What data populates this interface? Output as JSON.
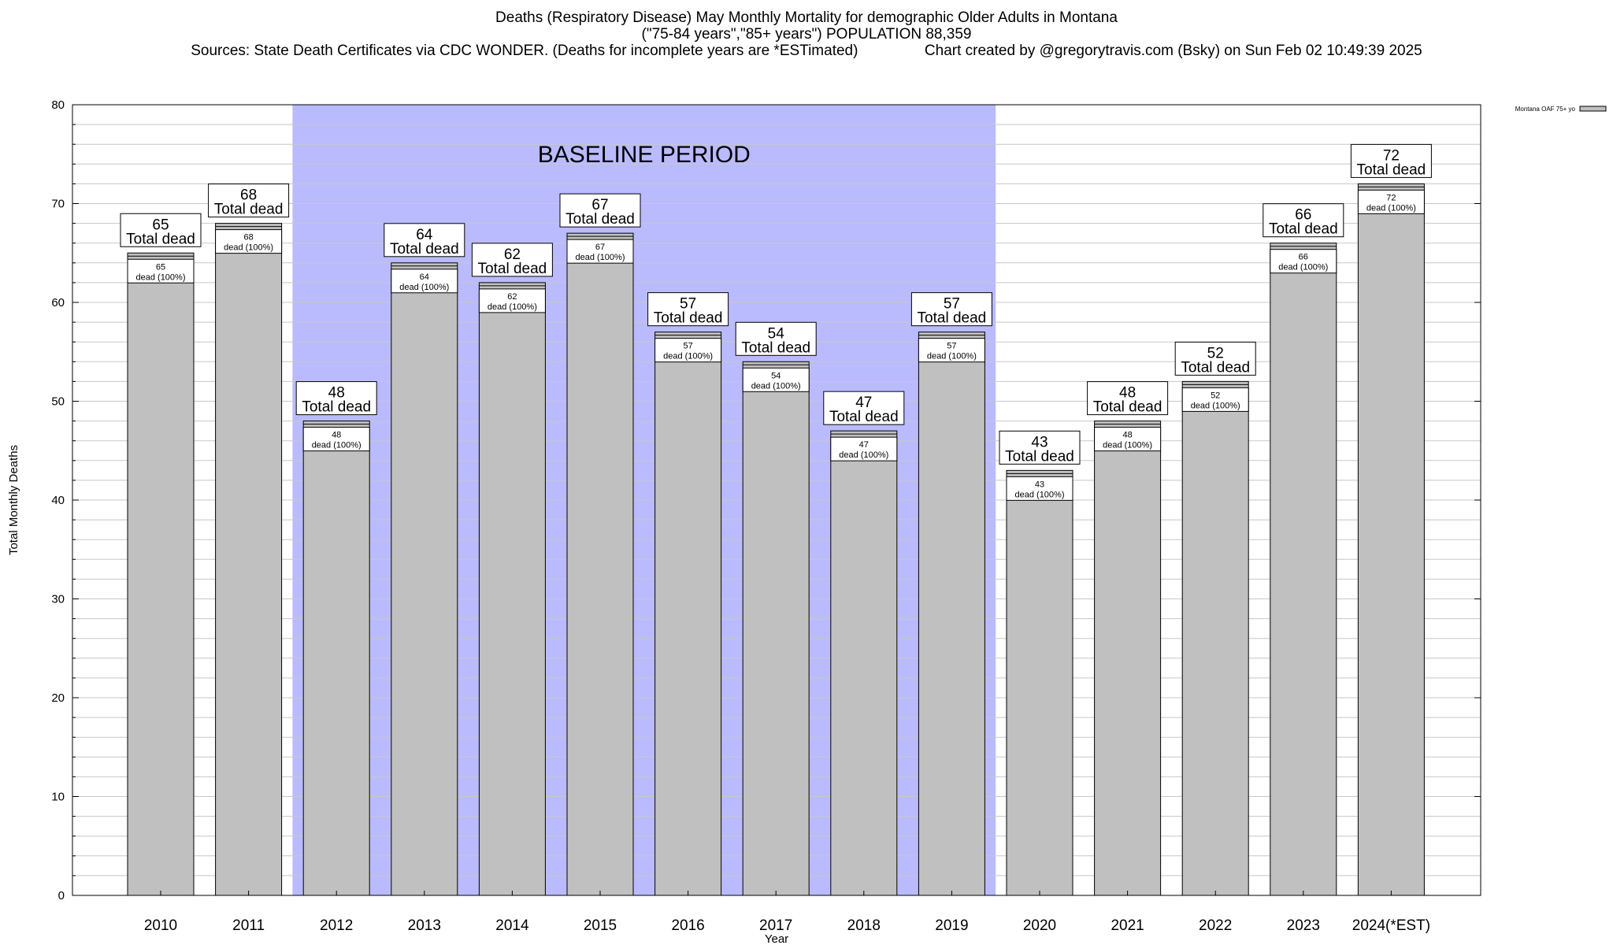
{
  "chart_data": {
    "type": "bar",
    "title": "Deaths (Respiratory Disease) May Monthly Mortality for demographic Older Adults in Montana",
    "subtitle": "(\"75-84 years\",\"85+ years\") POPULATION 88,359",
    "sources": "Sources: State Death Certificates via CDC WONDER. (Deaths for incomplete years are *ESTimated)",
    "credit": "Chart created by @gregorytravis.com (Bsky) on Sun Feb 02 10:49:39 2025",
    "xlabel": "Year",
    "ylabel": "Total Monthly Deaths",
    "ylim": [
      0,
      80
    ],
    "yticks": [
      0,
      10,
      20,
      30,
      40,
      50,
      60,
      70,
      80
    ],
    "grid": true,
    "legend_placement": "top-right",
    "categories": [
      "2010",
      "2011",
      "2012",
      "2013",
      "2014",
      "2015",
      "2016",
      "2017",
      "2018",
      "2019",
      "2020",
      "2021",
      "2022",
      "2023",
      "2024(*EST)"
    ],
    "series": [
      {
        "name": "Montana OAF 75+ yo",
        "values": [
          65,
          68,
          48,
          64,
          62,
          67,
          57,
          54,
          47,
          57,
          43,
          48,
          52,
          66,
          72
        ]
      }
    ],
    "total_label": "Total dead",
    "inner_label": "dead (100%)",
    "baseline": {
      "label": "BASELINE PERIOD",
      "from": "2012",
      "to": "2019"
    },
    "colors": {
      "bar": "#c0c0c0",
      "baseline_band": "#babafe",
      "grid": "#c8c8c8"
    }
  }
}
